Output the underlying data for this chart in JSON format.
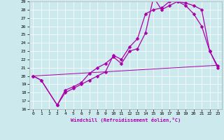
{
  "xlabel": "Windchill (Refroidissement éolien,°C)",
  "bg_color": "#cce9ed",
  "line_color": "#aa00aa",
  "xlim": [
    -0.5,
    23.5
  ],
  "ylim": [
    16,
    29
  ],
  "xticks": [
    0,
    1,
    2,
    3,
    4,
    5,
    6,
    7,
    8,
    9,
    10,
    11,
    12,
    13,
    14,
    15,
    16,
    17,
    18,
    19,
    20,
    21,
    22,
    23
  ],
  "yticks": [
    16,
    17,
    18,
    19,
    20,
    21,
    22,
    23,
    24,
    25,
    26,
    27,
    28,
    29
  ],
  "s1x": [
    0,
    1,
    3,
    4,
    5,
    6,
    7,
    8,
    9,
    10,
    11,
    12,
    13,
    14,
    15,
    16,
    17,
    18,
    19,
    20,
    21,
    22,
    23
  ],
  "s1y": [
    20.0,
    19.5,
    16.5,
    18.3,
    18.7,
    19.2,
    20.3,
    21.0,
    21.5,
    22.3,
    21.5,
    23.0,
    23.3,
    25.2,
    29.5,
    28.0,
    28.5,
    29.0,
    28.5,
    27.5,
    26.0,
    23.0,
    21.0
  ],
  "s2x": [
    0,
    1,
    3,
    4,
    5,
    6,
    7,
    8,
    9,
    10,
    11,
    12,
    13,
    14,
    15,
    16,
    17,
    18,
    19,
    20,
    21,
    22,
    23
  ],
  "s2y": [
    20.0,
    19.5,
    16.5,
    18.0,
    18.5,
    19.0,
    19.5,
    20.0,
    20.5,
    22.5,
    22.0,
    23.5,
    24.5,
    27.5,
    28.0,
    28.2,
    29.0,
    29.0,
    28.8,
    28.5,
    28.0,
    23.0,
    21.2
  ],
  "s3x": [
    0,
    23
  ],
  "s3y": [
    20.0,
    21.3
  ],
  "grid_color": "#ffffff",
  "spine_color": "#aaaaaa"
}
